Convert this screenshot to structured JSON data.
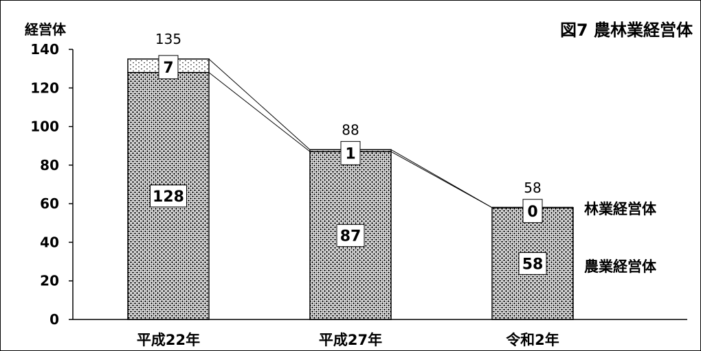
{
  "chart_data": {
    "type": "bar",
    "stacked": true,
    "title": "図7  農林業経営体",
    "ylabel": "経営体",
    "xlabel": "",
    "ylim": [
      0,
      140
    ],
    "yticks": [
      0,
      20,
      40,
      60,
      80,
      100,
      120,
      140
    ],
    "categories": [
      "平成22年",
      "平成27年",
      "令和2年"
    ],
    "totals": [
      135,
      88,
      58
    ],
    "series": [
      {
        "name": "農業経営体",
        "values": [
          128,
          87,
          58
        ],
        "pattern": "dense-dots"
      },
      {
        "name": "林業経営体",
        "values": [
          7,
          1,
          0
        ],
        "pattern": "sparse-dots"
      }
    ],
    "grid": false,
    "legend": "right, beside last bar",
    "colors": {
      "bar_fill": "#9a9a9a",
      "outline": "#000000",
      "background": "#ffffff"
    }
  }
}
